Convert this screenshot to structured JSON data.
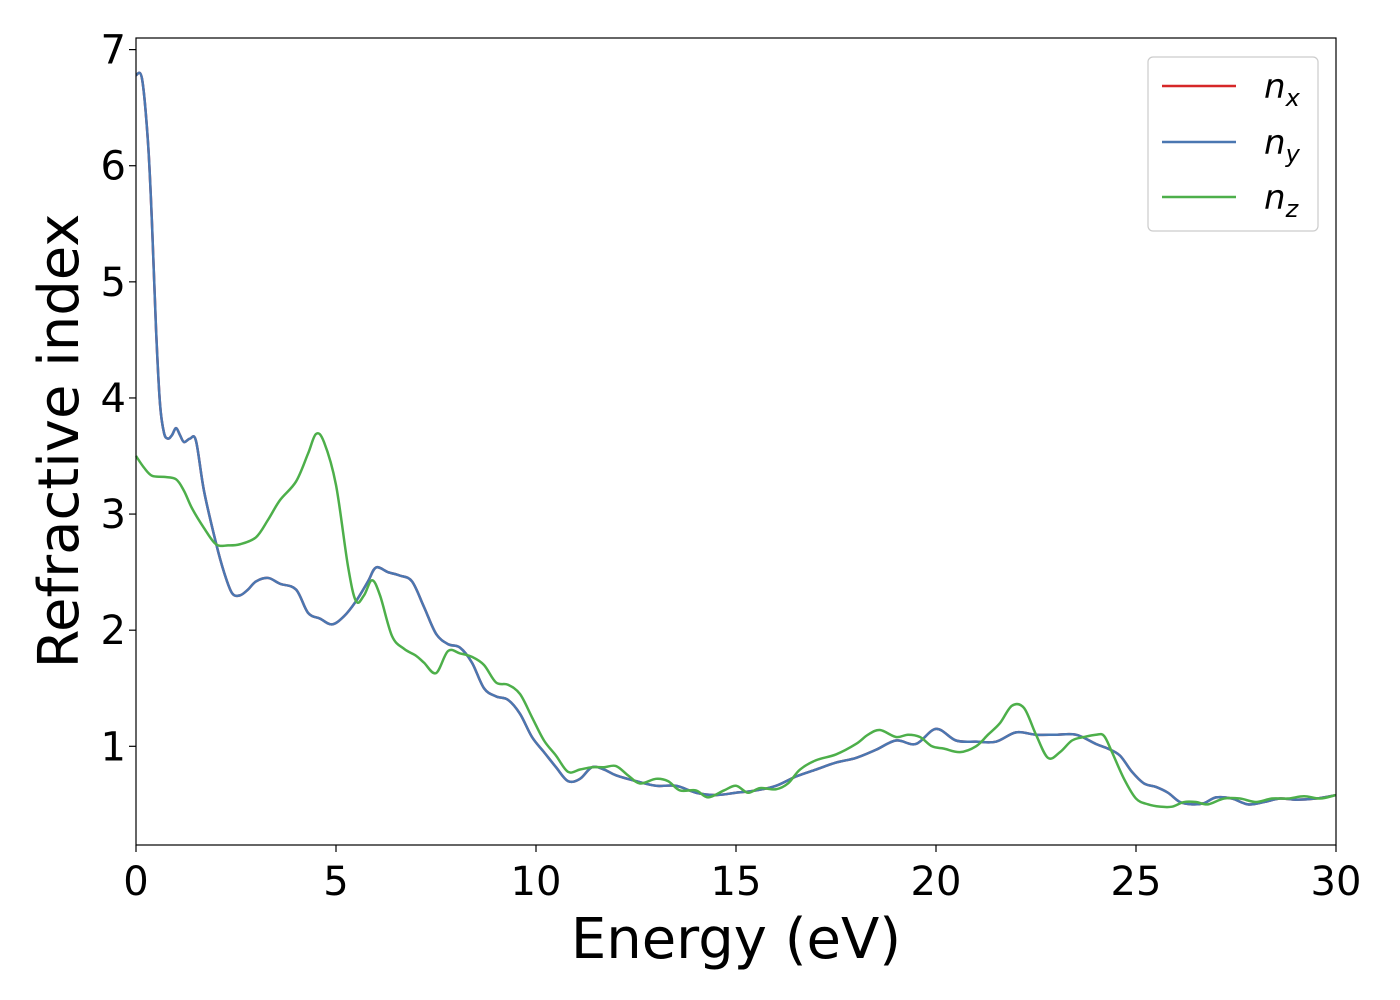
{
  "chart_data": {
    "type": "line",
    "title": "",
    "xlabel": "Energy (eV)",
    "ylabel": "Refractive index",
    "xlim": [
      0,
      30
    ],
    "ylim": [
      0.15,
      7.1
    ],
    "xticks": [
      0,
      5,
      10,
      15,
      20,
      25,
      30
    ],
    "yticks": [
      1,
      2,
      3,
      4,
      5,
      6,
      7
    ],
    "grid": false,
    "legend_position": "top-right",
    "series": [
      {
        "name": "n",
        "name_sub": "x",
        "color": "#d62728",
        "x": [
          0,
          0.15,
          0.3,
          0.4,
          0.5,
          0.6,
          0.7,
          0.8,
          0.9,
          1.0,
          1.1,
          1.2,
          1.35,
          1.5,
          1.7,
          2.0,
          2.2,
          2.4,
          2.6,
          2.8,
          3.0,
          3.3,
          3.6,
          4.0,
          4.3,
          4.6,
          4.9,
          5.2,
          5.5,
          5.8,
          6.0,
          6.3,
          6.6,
          6.9,
          7.2,
          7.5,
          7.8,
          8.1,
          8.4,
          8.7,
          9.0,
          9.3,
          9.6,
          9.9,
          10.2,
          10.5,
          10.8,
          11.1,
          11.4,
          11.7,
          12.0,
          12.5,
          13.0,
          13.5,
          14.0,
          14.5,
          15.0,
          15.5,
          16.0,
          16.5,
          17.0,
          17.5,
          18.0,
          18.5,
          19.0,
          19.5,
          20.0,
          20.5,
          21.0,
          21.5,
          22.0,
          22.5,
          23.0,
          23.5,
          24.0,
          24.3,
          24.6,
          24.9,
          25.2,
          25.5,
          25.8,
          26.1,
          26.4,
          26.7,
          27.0,
          27.4,
          27.8,
          28.2,
          28.6,
          29.0,
          29.5,
          30.0
        ],
        "values": [
          6.78,
          6.75,
          6.2,
          5.5,
          4.6,
          3.95,
          3.7,
          3.65,
          3.68,
          3.74,
          3.68,
          3.62,
          3.65,
          3.63,
          3.2,
          2.75,
          2.5,
          2.32,
          2.3,
          2.35,
          2.42,
          2.45,
          2.4,
          2.35,
          2.15,
          2.1,
          2.05,
          2.12,
          2.25,
          2.42,
          2.54,
          2.5,
          2.47,
          2.42,
          2.2,
          1.97,
          1.88,
          1.85,
          1.72,
          1.5,
          1.43,
          1.4,
          1.28,
          1.08,
          0.95,
          0.82,
          0.7,
          0.72,
          0.82,
          0.8,
          0.75,
          0.7,
          0.66,
          0.66,
          0.6,
          0.58,
          0.6,
          0.62,
          0.66,
          0.74,
          0.8,
          0.86,
          0.9,
          0.97,
          1.05,
          1.02,
          1.15,
          1.05,
          1.04,
          1.04,
          1.12,
          1.1,
          1.1,
          1.1,
          1.02,
          0.98,
          0.92,
          0.78,
          0.68,
          0.65,
          0.6,
          0.52,
          0.5,
          0.51,
          0.56,
          0.55,
          0.5,
          0.52,
          0.55,
          0.54,
          0.55,
          0.58
        ]
      },
      {
        "name": "n",
        "name_sub": "y",
        "color": "#4a77b1",
        "x": [
          0,
          0.15,
          0.3,
          0.4,
          0.5,
          0.6,
          0.7,
          0.8,
          0.9,
          1.0,
          1.1,
          1.2,
          1.35,
          1.5,
          1.7,
          2.0,
          2.2,
          2.4,
          2.6,
          2.8,
          3.0,
          3.3,
          3.6,
          4.0,
          4.3,
          4.6,
          4.9,
          5.2,
          5.5,
          5.8,
          6.0,
          6.3,
          6.6,
          6.9,
          7.2,
          7.5,
          7.8,
          8.1,
          8.4,
          8.7,
          9.0,
          9.3,
          9.6,
          9.9,
          10.2,
          10.5,
          10.8,
          11.1,
          11.4,
          11.7,
          12.0,
          12.5,
          13.0,
          13.5,
          14.0,
          14.5,
          15.0,
          15.5,
          16.0,
          16.5,
          17.0,
          17.5,
          18.0,
          18.5,
          19.0,
          19.5,
          20.0,
          20.5,
          21.0,
          21.5,
          22.0,
          22.5,
          23.0,
          23.5,
          24.0,
          24.3,
          24.6,
          24.9,
          25.2,
          25.5,
          25.8,
          26.1,
          26.4,
          26.7,
          27.0,
          27.4,
          27.8,
          28.2,
          28.6,
          29.0,
          29.5,
          30.0
        ],
        "values": [
          6.78,
          6.75,
          6.2,
          5.5,
          4.6,
          3.95,
          3.7,
          3.65,
          3.68,
          3.74,
          3.68,
          3.62,
          3.65,
          3.63,
          3.2,
          2.75,
          2.5,
          2.32,
          2.3,
          2.35,
          2.42,
          2.45,
          2.4,
          2.35,
          2.15,
          2.1,
          2.05,
          2.12,
          2.25,
          2.42,
          2.54,
          2.5,
          2.47,
          2.42,
          2.2,
          1.97,
          1.88,
          1.85,
          1.72,
          1.5,
          1.43,
          1.4,
          1.28,
          1.08,
          0.95,
          0.82,
          0.7,
          0.72,
          0.82,
          0.8,
          0.75,
          0.7,
          0.66,
          0.66,
          0.6,
          0.58,
          0.6,
          0.62,
          0.66,
          0.74,
          0.8,
          0.86,
          0.9,
          0.97,
          1.05,
          1.02,
          1.15,
          1.05,
          1.04,
          1.04,
          1.12,
          1.1,
          1.1,
          1.1,
          1.02,
          0.98,
          0.92,
          0.78,
          0.68,
          0.65,
          0.6,
          0.52,
          0.5,
          0.51,
          0.56,
          0.55,
          0.5,
          0.52,
          0.55,
          0.54,
          0.55,
          0.58
        ]
      },
      {
        "name": "n",
        "name_sub": "z",
        "color": "#4daf4a",
        "x": [
          0,
          0.2,
          0.4,
          0.7,
          1.0,
          1.2,
          1.4,
          1.7,
          2.0,
          2.3,
          2.6,
          3.0,
          3.3,
          3.6,
          4.0,
          4.3,
          4.5,
          4.7,
          5.0,
          5.3,
          5.5,
          5.7,
          5.9,
          6.1,
          6.4,
          6.7,
          7.0,
          7.2,
          7.5,
          7.8,
          8.1,
          8.4,
          8.7,
          9.0,
          9.3,
          9.6,
          9.9,
          10.2,
          10.5,
          10.8,
          11.1,
          11.4,
          11.7,
          12.0,
          12.3,
          12.6,
          13.0,
          13.3,
          13.6,
          14.0,
          14.3,
          14.7,
          15.0,
          15.3,
          15.6,
          16.0,
          16.3,
          16.6,
          17.0,
          17.5,
          18.0,
          18.3,
          18.6,
          19.0,
          19.3,
          19.6,
          19.9,
          20.2,
          20.6,
          21.0,
          21.3,
          21.6,
          21.9,
          22.2,
          22.5,
          22.8,
          23.1,
          23.4,
          23.7,
          24.0,
          24.2,
          24.4,
          24.7,
          25.0,
          25.3,
          25.6,
          25.9,
          26.2,
          26.5,
          26.8,
          27.2,
          27.6,
          28.0,
          28.4,
          28.8,
          29.2,
          29.6,
          30.0
        ],
        "values": [
          3.5,
          3.4,
          3.33,
          3.32,
          3.3,
          3.2,
          3.05,
          2.88,
          2.74,
          2.73,
          2.74,
          2.8,
          2.95,
          3.12,
          3.28,
          3.52,
          3.69,
          3.62,
          3.25,
          2.55,
          2.25,
          2.3,
          2.43,
          2.3,
          1.95,
          1.84,
          1.78,
          1.72,
          1.63,
          1.82,
          1.8,
          1.77,
          1.7,
          1.55,
          1.53,
          1.45,
          1.25,
          1.05,
          0.92,
          0.78,
          0.8,
          0.82,
          0.82,
          0.83,
          0.75,
          0.68,
          0.72,
          0.7,
          0.62,
          0.62,
          0.56,
          0.62,
          0.66,
          0.6,
          0.64,
          0.63,
          0.68,
          0.8,
          0.88,
          0.93,
          1.02,
          1.1,
          1.14,
          1.08,
          1.1,
          1.08,
          1.0,
          0.98,
          0.95,
          1.0,
          1.1,
          1.2,
          1.35,
          1.33,
          1.1,
          0.9,
          0.95,
          1.05,
          1.08,
          1.1,
          1.09,
          0.95,
          0.72,
          0.55,
          0.5,
          0.48,
          0.48,
          0.52,
          0.52,
          0.5,
          0.55,
          0.55,
          0.52,
          0.55,
          0.55,
          0.57,
          0.55,
          0.58
        ]
      }
    ]
  }
}
